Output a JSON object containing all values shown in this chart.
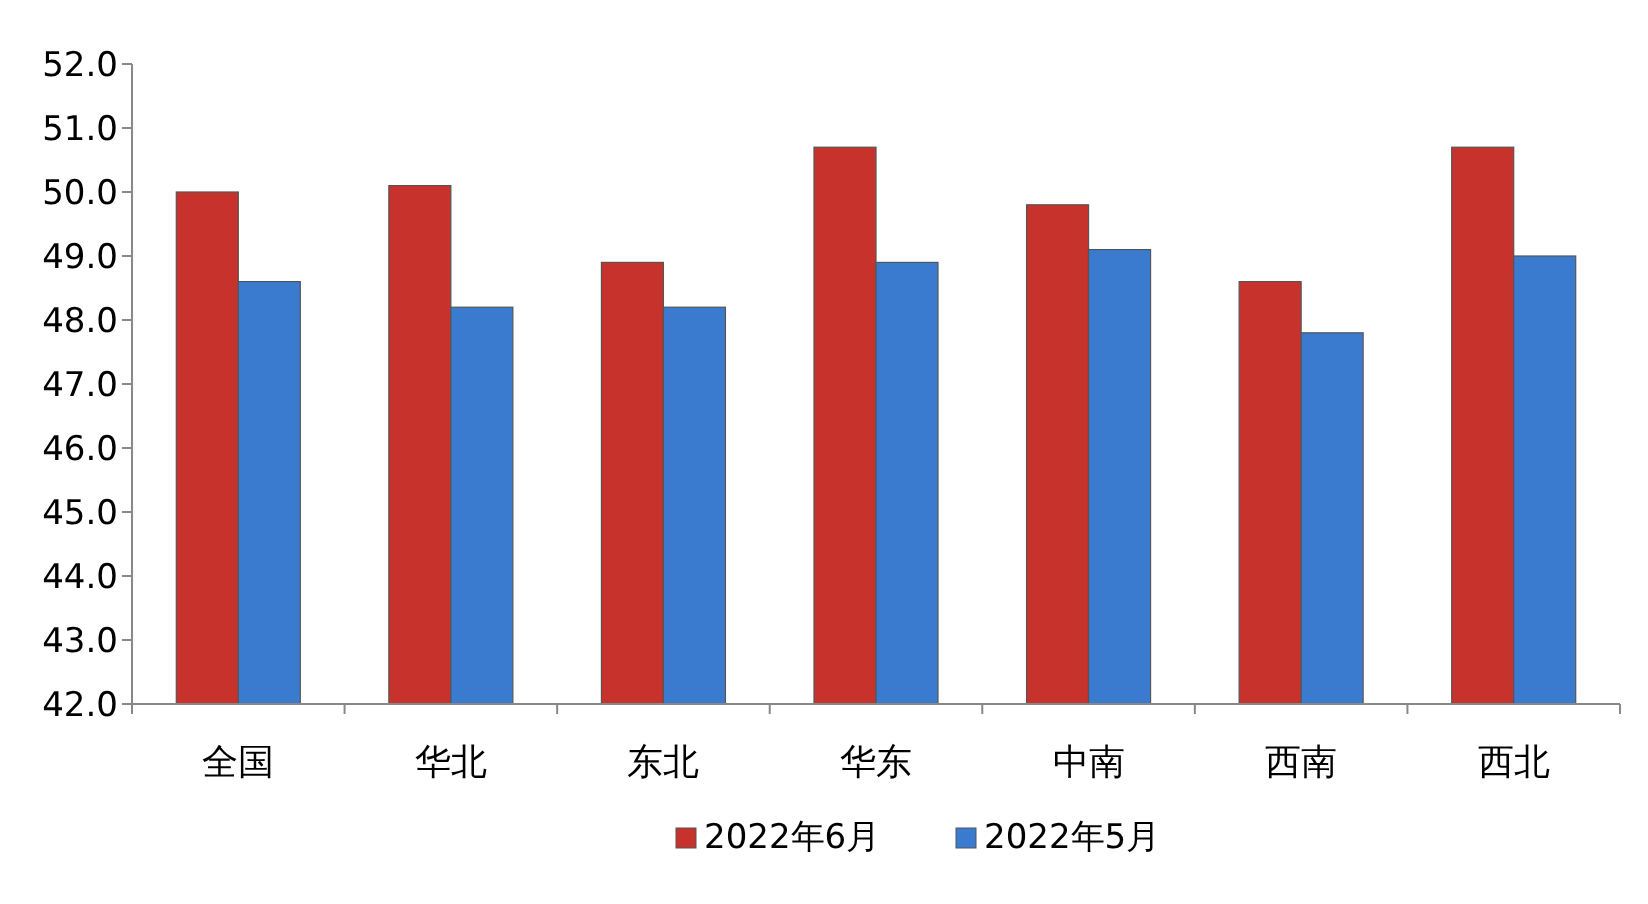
{
  "chart_data": {
    "type": "bar",
    "categories": [
      "全国",
      "华北",
      "东北",
      "华东",
      "中南",
      "西南",
      "西北"
    ],
    "series": [
      {
        "name": "2022年6月",
        "color": "#c8322c",
        "values": [
          50.0,
          50.1,
          48.9,
          50.7,
          49.8,
          48.6,
          50.7
        ]
      },
      {
        "name": "2022年5月",
        "color": "#3a7bd0",
        "values": [
          48.6,
          48.2,
          48.2,
          48.9,
          49.1,
          47.8,
          49.0
        ]
      }
    ],
    "ylim": [
      42,
      52
    ],
    "yticks": [
      {
        "value": 42,
        "label": "42.0"
      },
      {
        "value": 43,
        "label": "43.0"
      },
      {
        "value": 44,
        "label": "44.0"
      },
      {
        "value": 45,
        "label": "45.0"
      },
      {
        "value": 46,
        "label": "46.0"
      },
      {
        "value": 47,
        "label": "47.0"
      },
      {
        "value": 48,
        "label": "48.0"
      },
      {
        "value": 49,
        "label": "49.0"
      },
      {
        "value": 50,
        "label": "50.0"
      },
      {
        "value": 51,
        "label": "51.0"
      },
      {
        "value": 52,
        "label": "52.0"
      }
    ],
    "legend": "bottom"
  }
}
